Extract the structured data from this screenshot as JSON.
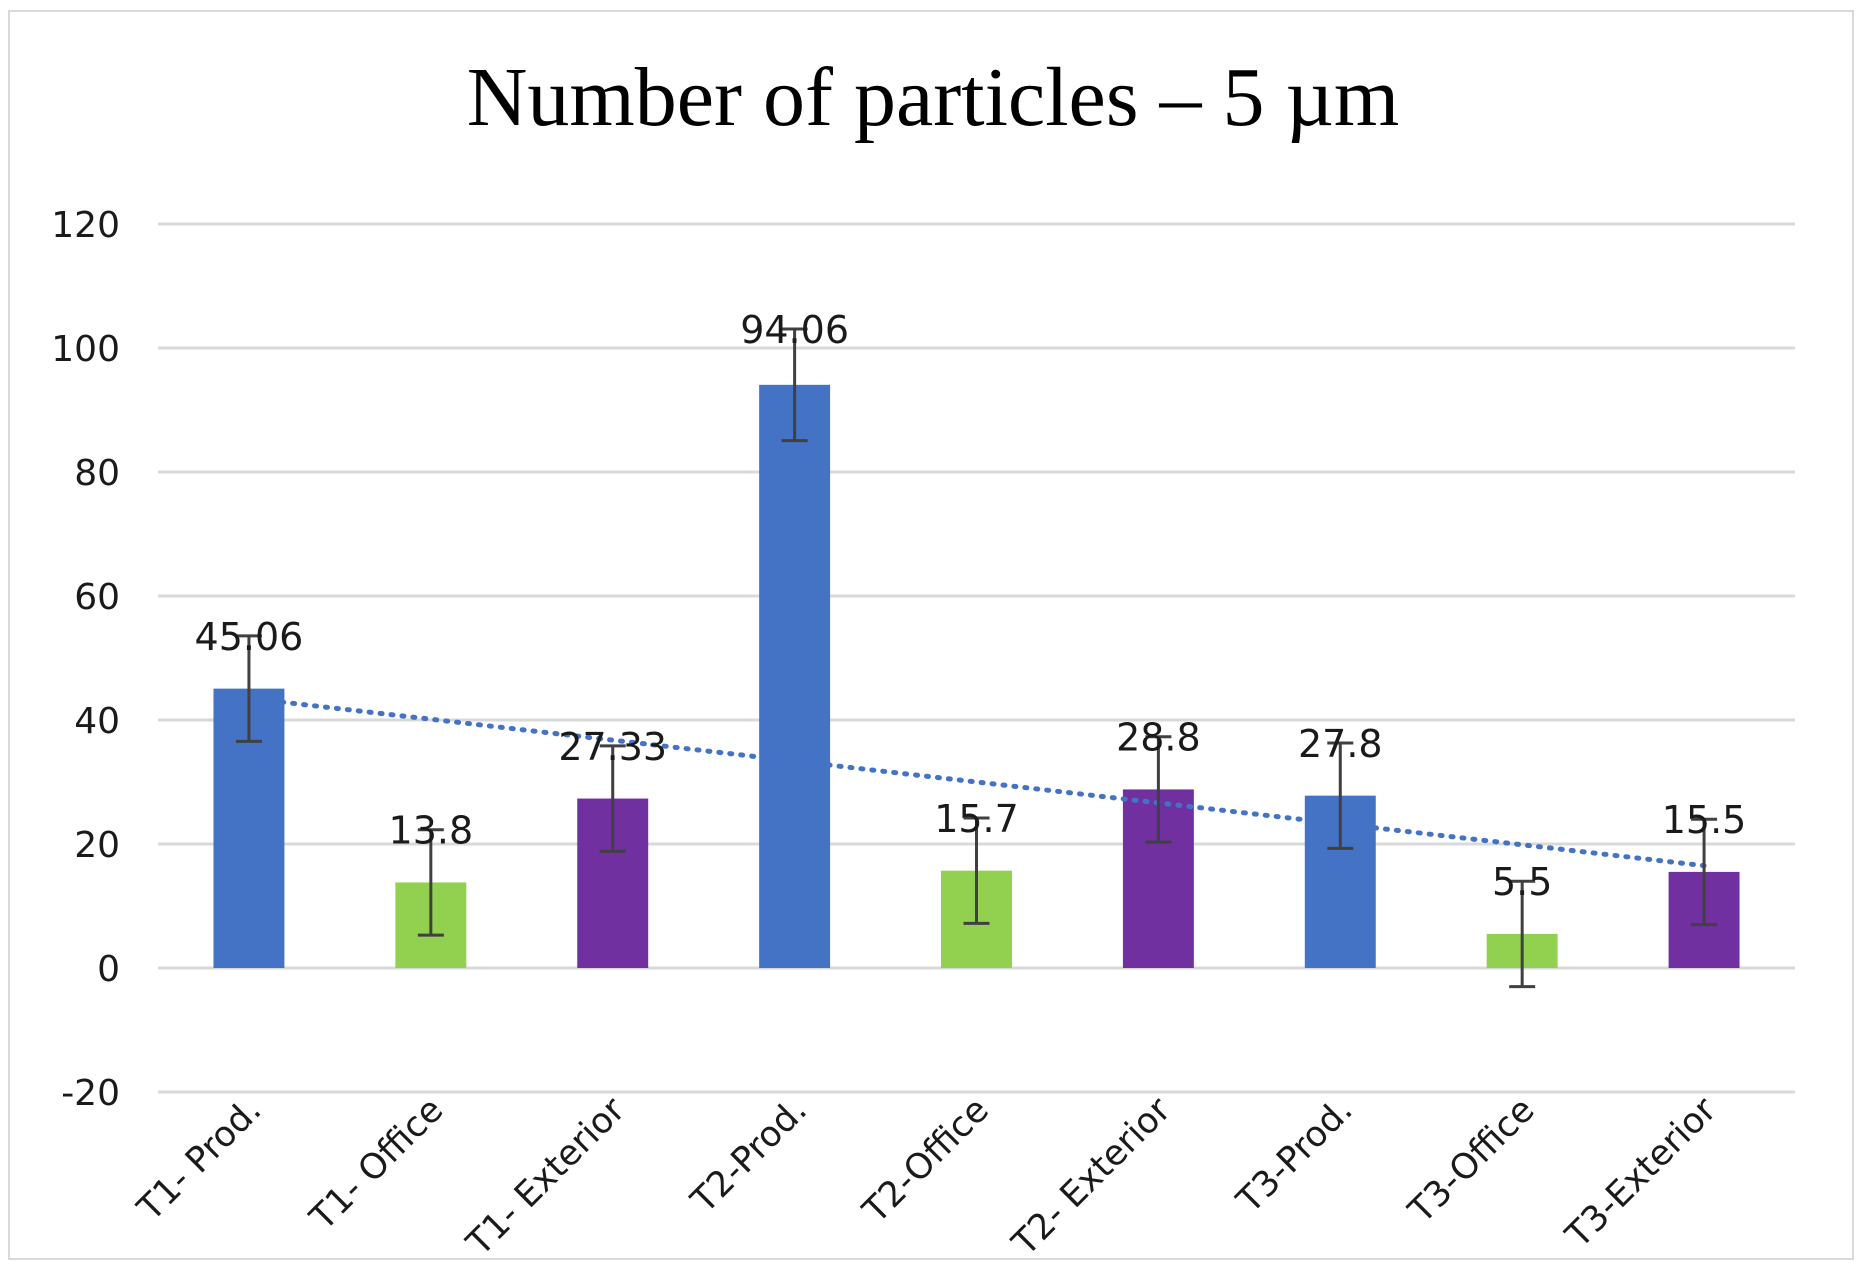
{
  "chart_data": {
    "type": "bar",
    "title": "Number of particles – 5 µm",
    "categories": [
      "T1- Prod.",
      "T1- Office",
      "T1- Exterior",
      "T2-Prod.",
      "T2-Office",
      "T2- Exterior",
      "T3-Prod.",
      "T3-Office",
      "T3-Exterior"
    ],
    "values": [
      45.06,
      13.8,
      27.33,
      94.06,
      15.7,
      28.8,
      27.8,
      5.5,
      15.5
    ],
    "data_labels": [
      "45.06",
      "13.8",
      "27.33",
      "94.06",
      "15.7",
      "28.8",
      "27.8",
      "5.5",
      "15.5"
    ],
    "error": [
      8.5,
      8.5,
      8.5,
      9,
      8.5,
      8.5,
      8.5,
      8.5,
      8.5
    ],
    "bar_colors": [
      "#4472c4",
      "#92d050",
      "#7030a0",
      "#4472c4",
      "#92d050",
      "#7030a0",
      "#4472c4",
      "#92d050",
      "#7030a0"
    ],
    "error_bar_color": "#404040",
    "trendline": {
      "type": "linear",
      "style": "dotted",
      "color": "#4472c4",
      "start": 43.5,
      "end": 16.5
    },
    "ylim": [
      -20,
      120
    ],
    "yticks": [
      -20,
      0,
      20,
      40,
      60,
      80,
      100,
      120
    ],
    "grid": true,
    "xlabel": "",
    "ylabel": ""
  }
}
